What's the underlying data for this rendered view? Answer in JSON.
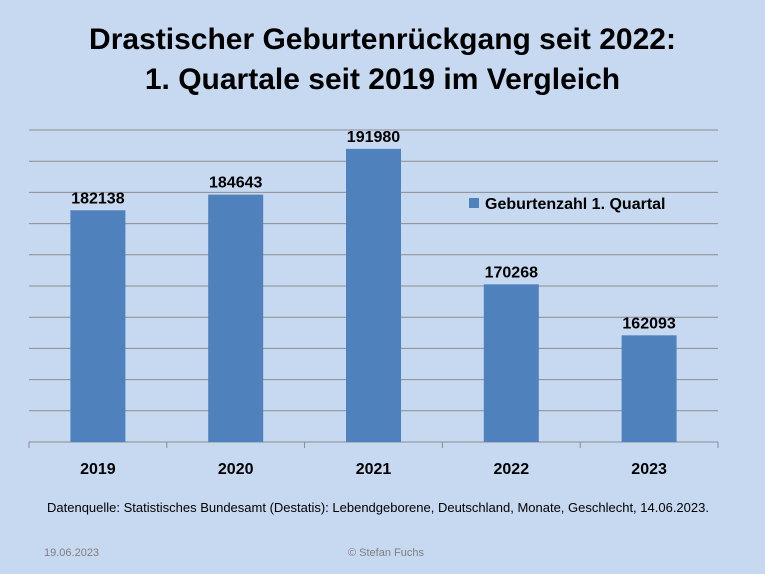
{
  "chart_data": {
    "type": "bar",
    "title": "Drastischer Geburtenrückgang seit 2022:",
    "subtitle": "1. Quartale seit 2019 im Vergleich",
    "categories": [
      "2019",
      "2020",
      "2021",
      "2022",
      "2023"
    ],
    "series": [
      {
        "name": "Geburtenzahl 1. Quartal",
        "values": [
          182138,
          184643,
          191980,
          170268,
          162093
        ]
      }
    ],
    "ylim": [
      145000,
      195000
    ],
    "grid": true,
    "legend_position": "right",
    "bar_color": "#4f81bd"
  },
  "source_note": "Datenquelle: Statistisches Bundesamt (Destatis): Lebendgeborene, Deutschland, Monate, Geschlecht, 14.06.2023.",
  "footer": {
    "date": "19.06.2023",
    "copyright": "© Stefan Fuchs"
  }
}
